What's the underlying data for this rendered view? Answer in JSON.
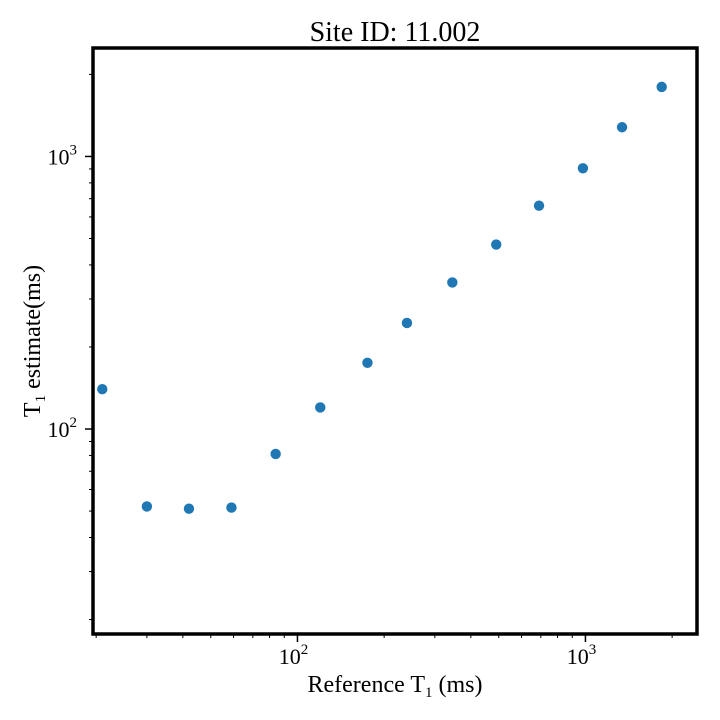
{
  "chart_data": {
    "type": "scatter",
    "title": "Site ID: 11.002",
    "xlabel": {
      "base": "Reference T",
      "sub": "1",
      "rest": " (ms)"
    },
    "ylabel": {
      "base": "T",
      "sub": "1",
      "rest": " estimate(ms)"
    },
    "xscale": "log",
    "yscale": "log",
    "xlim": [
      19.5,
      2440
    ],
    "ylim": [
      17.7,
      2500
    ],
    "grid": false,
    "color": "#1f77b4",
    "x_ticks": [
      {
        "base": "10",
        "exp": "2",
        "value": 100
      },
      {
        "base": "10",
        "exp": "3",
        "value": 1000
      }
    ],
    "y_ticks": [
      {
        "base": "10",
        "exp": "2",
        "value": 100
      },
      {
        "base": "10",
        "exp": "3",
        "value": 1000
      }
    ],
    "series": [
      {
        "x": [
          21,
          30,
          42,
          59,
          84,
          120,
          175,
          240,
          345,
          490,
          690,
          980,
          1340,
          1840
        ],
        "y": [
          140,
          52,
          51,
          51.5,
          81,
          120,
          175,
          245,
          345,
          475,
          660,
          905,
          1280,
          1800
        ]
      }
    ]
  }
}
